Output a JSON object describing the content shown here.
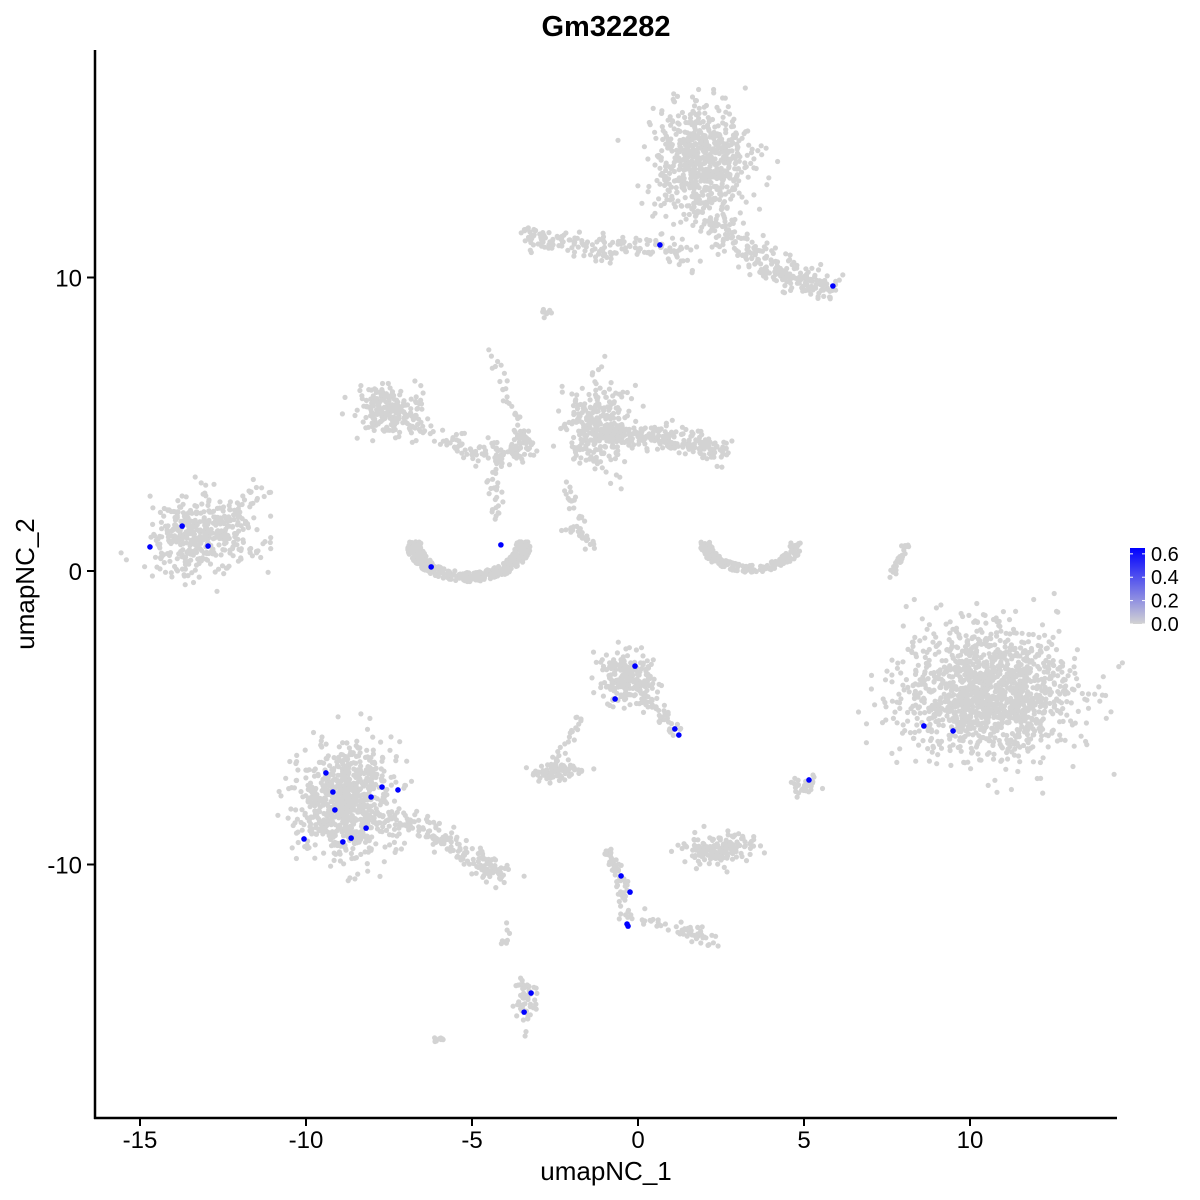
{
  "chart_data": {
    "type": "scatter",
    "title": "Gm32282",
    "xlabel": "umapNC_1",
    "ylabel": "umapNC_2",
    "xlim": [
      -16.4,
      14.4
    ],
    "ylim": [
      -18.6,
      17.9
    ],
    "xticks": [
      -15,
      -10,
      -5,
      0,
      5,
      10
    ],
    "yticks": [
      -10,
      0,
      10
    ],
    "grid": false,
    "colors": {
      "low": "#d3d3d3",
      "high": "#0000ff"
    },
    "legend": {
      "position": "right",
      "ticks": [
        "0.0",
        "0.2",
        "0.4",
        "0.6"
      ],
      "range": [
        0,
        0.65
      ]
    },
    "background_clusters_zero_expression": [
      {
        "center": [
          1.9,
          14.0
        ],
        "spread": [
          0.9,
          1.2
        ],
        "n": 650
      },
      {
        "path": [
          [
            1.6,
            12.5
          ],
          [
            3.2,
            11.0
          ],
          [
            4.5,
            10.0
          ],
          [
            5.8,
            9.6
          ]
        ],
        "jitter": 0.45,
        "n": 250
      },
      {
        "path": [
          [
            -3.5,
            11.5
          ],
          [
            -2.5,
            11.2
          ],
          [
            -1,
            11.0
          ],
          [
            0.5,
            11.1
          ],
          [
            1.7,
            10.6
          ]
        ],
        "jitter": 0.35,
        "n": 170
      },
      {
        "center": [
          -13.2,
          1.2
        ],
        "spread": [
          1.0,
          0.75
        ],
        "n": 420
      },
      {
        "path": [
          [
            -12.6,
            1.5
          ],
          [
            -11.5,
            2.7
          ]
        ],
        "jitter": 0.3,
        "n": 40
      },
      {
        "arc": [
          -5.1,
          1.0
        ],
        "radius": [
          1.8,
          1.3
        ],
        "n": 420
      },
      {
        "center": [
          -7.5,
          5.5
        ],
        "spread": [
          0.6,
          0.5
        ],
        "n": 200
      },
      {
        "path": [
          [
            -7.5,
            5.3
          ],
          [
            -5,
            4.2
          ],
          [
            -4,
            3.8
          ],
          [
            -3.3,
            4.5
          ]
        ],
        "jitter": 0.35,
        "n": 140
      },
      {
        "path": [
          [
            -4.4,
            7.5
          ],
          [
            -3.8,
            5.5
          ],
          [
            -3.2,
            3.8
          ]
        ],
        "jitter": 0.15,
        "n": 40
      },
      {
        "path": [
          [
            -4.3,
            3.5
          ],
          [
            -4.3,
            1.5
          ]
        ],
        "jitter": 0.15,
        "n": 25
      },
      {
        "center": [
          -1.2,
          5.0
        ],
        "spread": [
          0.6,
          0.9
        ],
        "n": 300
      },
      {
        "path": [
          [
            -1.0,
            4.6
          ],
          [
            1.0,
            4.6
          ],
          [
            2.5,
            4.0
          ]
        ],
        "jitter": 0.35,
        "n": 220
      },
      {
        "path": [
          [
            -2.2,
            3.0
          ],
          [
            -1.7,
            1.5
          ]
        ],
        "jitter": 0.2,
        "n": 20
      },
      {
        "path": [
          [
            -2.2,
            1.5
          ],
          [
            -0.9,
            0.7
          ]
        ],
        "jitter": 0.15,
        "n": 25
      },
      {
        "arc": [
          3.4,
          1.0
        ],
        "radius": [
          1.5,
          1.0
        ],
        "n": 200
      },
      {
        "path": [
          [
            8.1,
            1.0
          ],
          [
            7.6,
            -0.3
          ]
        ],
        "jitter": 0.1,
        "n": 30
      },
      {
        "center": [
          10.5,
          -4.2
        ],
        "spread": [
          1.6,
          1.4
        ],
        "n": 1400
      },
      {
        "center": [
          -8.8,
          -7.8
        ],
        "spread": [
          0.9,
          1.2
        ],
        "n": 750
      },
      {
        "path": [
          [
            -8.0,
            -8.3
          ],
          [
            -6.5,
            -8.7
          ],
          [
            -5,
            -9.8
          ],
          [
            -3.8,
            -10.4
          ]
        ],
        "jitter": 0.35,
        "n": 200
      },
      {
        "center": [
          -0.3,
          -3.7
        ],
        "spread": [
          0.55,
          0.6
        ],
        "n": 220
      },
      {
        "path": [
          [
            0.2,
            -4.3
          ],
          [
            1.2,
            -5.5
          ]
        ],
        "jitter": 0.2,
        "n": 40
      },
      {
        "center": [
          -2.4,
          -6.8
        ],
        "spread": [
          0.45,
          0.2
        ],
        "n": 90
      },
      {
        "path": [
          [
            -2.5,
            -6.5
          ],
          [
            -1.7,
            -5.0
          ]
        ],
        "jitter": 0.15,
        "n": 20
      },
      {
        "center": [
          2.4,
          -9.5
        ],
        "spread": [
          0.7,
          0.3
        ],
        "n": 160
      },
      {
        "path": [
          [
            -0.9,
            -9.5
          ],
          [
            -0.5,
            -10.5
          ],
          [
            -0.3,
            -12.0
          ]
        ],
        "jitter": 0.15,
        "n": 70
      },
      {
        "path": [
          [
            0,
            -11.8
          ],
          [
            1.5,
            -12.3
          ],
          [
            2.4,
            -12.7
          ]
        ],
        "jitter": 0.2,
        "n": 50
      },
      {
        "center": [
          -3.4,
          -14.6
        ],
        "spread": [
          0.2,
          0.5
        ],
        "n": 60
      },
      {
        "center": [
          5.0,
          -7.3
        ],
        "spread": [
          0.25,
          0.2
        ],
        "n": 30
      },
      {
        "center": [
          -6.0,
          -16.0
        ],
        "spread": [
          0.15,
          0.1
        ],
        "n": 8
      },
      {
        "center": [
          -4.0,
          -12.5
        ],
        "spread": [
          0.1,
          0.4
        ],
        "n": 8
      },
      {
        "center": [
          -2.8,
          8.8
        ],
        "spread": [
          0.15,
          0.15
        ],
        "n": 8
      }
    ],
    "expressing_cells": {
      "value": 0.6,
      "points": [
        [
          0.66,
          11.11
        ],
        [
          5.87,
          9.71
        ],
        [
          -14.7,
          0.82
        ],
        [
          -13.73,
          1.53
        ],
        [
          -12.95,
          0.85
        ],
        [
          -6.23,
          0.14
        ],
        [
          -4.13,
          0.89
        ],
        [
          -0.09,
          -3.24
        ],
        [
          -0.69,
          -4.36
        ],
        [
          1.11,
          -5.38
        ],
        [
          1.23,
          -5.59
        ],
        [
          8.61,
          -5.28
        ],
        [
          9.49,
          -5.45
        ],
        [
          5.15,
          -7.12
        ],
        [
          -9.4,
          -6.88
        ],
        [
          -9.19,
          -7.53
        ],
        [
          -9.13,
          -8.14
        ],
        [
          -7.71,
          -7.36
        ],
        [
          -7.23,
          -7.46
        ],
        [
          -8.04,
          -7.7
        ],
        [
          -8.19,
          -8.76
        ],
        [
          -8.64,
          -9.1
        ],
        [
          -8.89,
          -9.23
        ],
        [
          -10.06,
          -9.13
        ],
        [
          -0.51,
          -10.39
        ],
        [
          -0.24,
          -10.94
        ],
        [
          -0.33,
          -12.03
        ],
        [
          -0.3,
          -12.1
        ],
        [
          -3.22,
          -14.38
        ],
        [
          -3.43,
          -15.03
        ]
      ]
    }
  }
}
